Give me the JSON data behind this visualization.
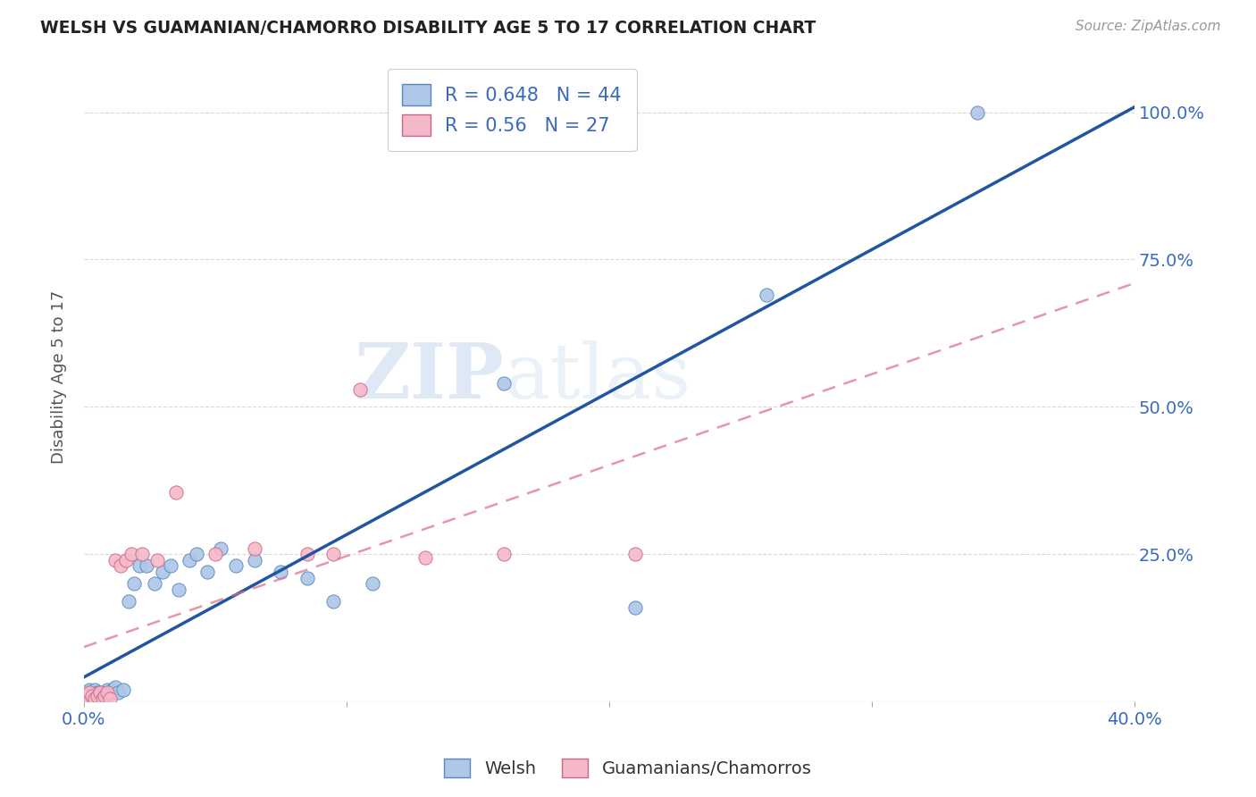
{
  "title": "WELSH VS GUAMANIAN/CHAMORRO DISABILITY AGE 5 TO 17 CORRELATION CHART",
  "source": "Source: ZipAtlas.com",
  "ylabel": "Disability Age 5 to 17",
  "xlim": [
    0.0,
    0.4
  ],
  "ylim": [
    0.0,
    1.1
  ],
  "xticks": [
    0.0,
    0.1,
    0.2,
    0.3,
    0.4
  ],
  "xticklabels": [
    "0.0%",
    "",
    "",
    "",
    "40.0%"
  ],
  "ytick_positions": [
    0.25,
    0.5,
    0.75,
    1.0
  ],
  "ytick_labels": [
    "25.0%",
    "50.0%",
    "75.0%",
    "100.0%"
  ],
  "welsh_R": 0.648,
  "welsh_N": 44,
  "guam_R": 0.56,
  "guam_N": 27,
  "welsh_color": "#aec6e8",
  "guam_color": "#f5b8c8",
  "welsh_line_color": "#2155a0",
  "guam_line_color": "#e07090",
  "watermark_color": "#c5d8ed",
  "welsh_x": [
    0.001,
    0.001,
    0.001,
    0.002,
    0.002,
    0.002,
    0.003,
    0.003,
    0.004,
    0.004,
    0.005,
    0.005,
    0.006,
    0.006,
    0.007,
    0.008,
    0.009,
    0.01,
    0.011,
    0.012,
    0.013,
    0.015,
    0.017,
    0.019,
    0.021,
    0.024,
    0.027,
    0.03,
    0.033,
    0.036,
    0.04,
    0.043,
    0.047,
    0.052,
    0.058,
    0.065,
    0.075,
    0.085,
    0.095,
    0.11,
    0.16,
    0.21,
    0.26,
    0.34
  ],
  "welsh_y": [
    0.005,
    0.01,
    0.015,
    0.005,
    0.01,
    0.02,
    0.005,
    0.015,
    0.01,
    0.02,
    0.01,
    0.015,
    0.005,
    0.015,
    0.01,
    0.015,
    0.02,
    0.015,
    0.02,
    0.025,
    0.015,
    0.02,
    0.17,
    0.2,
    0.23,
    0.23,
    0.2,
    0.22,
    0.23,
    0.19,
    0.24,
    0.25,
    0.22,
    0.26,
    0.23,
    0.24,
    0.22,
    0.21,
    0.17,
    0.2,
    0.54,
    0.16,
    0.69,
    1.0
  ],
  "guam_x": [
    0.001,
    0.001,
    0.002,
    0.002,
    0.003,
    0.004,
    0.005,
    0.006,
    0.007,
    0.008,
    0.009,
    0.01,
    0.012,
    0.014,
    0.016,
    0.018,
    0.022,
    0.028,
    0.035,
    0.05,
    0.065,
    0.085,
    0.095,
    0.105,
    0.13,
    0.16,
    0.21
  ],
  "guam_y": [
    0.005,
    0.01,
    0.005,
    0.015,
    0.01,
    0.005,
    0.01,
    0.015,
    0.005,
    0.01,
    0.015,
    0.005,
    0.24,
    0.23,
    0.24,
    0.25,
    0.25,
    0.24,
    0.355,
    0.25,
    0.26,
    0.25,
    0.25,
    0.53,
    0.245,
    0.25,
    0.25
  ],
  "background_color": "#ffffff",
  "grid_color": "#d0d0d0"
}
